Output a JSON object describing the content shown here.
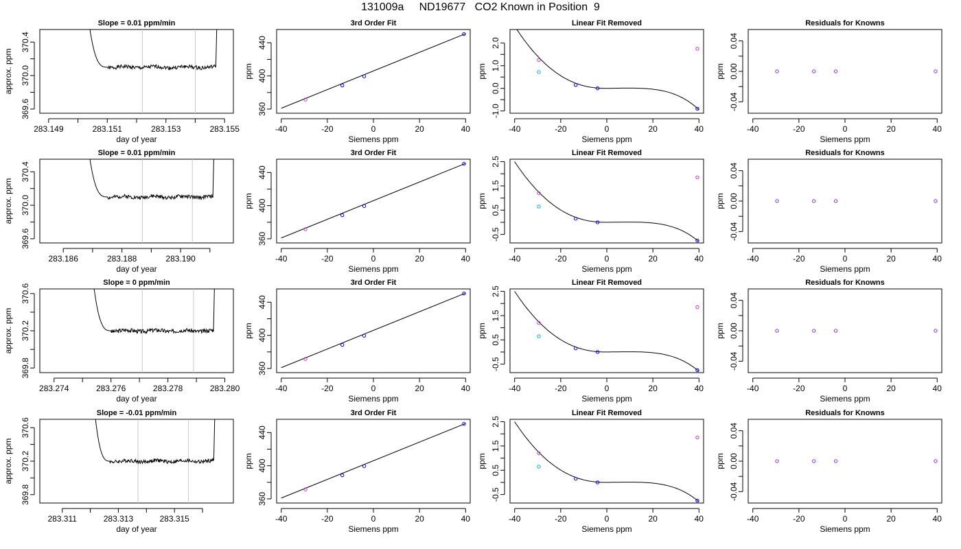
{
  "figure_title": "131009a     ND19677   CO2 Known in Position  9",
  "colors": {
    "trace": "#000000",
    "marker_window": "#c8c8c8",
    "known_points": "#0000ff",
    "fit_points_purple": "#8a2be2",
    "linear_removed_magenta": "#cc33cc",
    "linear_removed_cyan": "#00b0d0"
  },
  "chart_data": [
    {
      "type": "line",
      "row": 0,
      "col": 0,
      "title": "Slope =  0.01  ppm/min",
      "xlabel": "day of year",
      "ylabel": "approx. ppm",
      "xlim": [
        283.1487,
        283.1553
      ],
      "ylim": [
        369.55,
        370.55
      ],
      "xticks": [
        283.149,
        283.15,
        283.151,
        283.152,
        283.153,
        283.154,
        283.155
      ],
      "xtick_labels": [
        "283.149",
        "",
        "283.151",
        "",
        "283.153",
        "",
        "283.155"
      ],
      "yticks": [
        369.6,
        369.8,
        370.0,
        370.2,
        370.4
      ],
      "ytick_labels": [
        "369.6",
        "",
        "370.0",
        "",
        "370.4"
      ],
      "windows": [
        283.1522,
        283.154
      ],
      "trace": {
        "start": 283.1503,
        "rise_end": 283.151,
        "plateau": 370.1,
        "end": 283.1547,
        "seed": 1
      }
    },
    {
      "type": "scatter",
      "row": 0,
      "col": 1,
      "title": "3rd Order Fit",
      "xlabel": "Siemens ppm",
      "ylabel": "ppm",
      "xlim": [
        -42,
        42
      ],
      "ylim": [
        355,
        456
      ],
      "xticks": [
        -40,
        -20,
        0,
        20,
        40
      ],
      "xtick_labels": [
        "-40",
        "-20",
        "0",
        "20",
        "40"
      ],
      "yticks": [
        360,
        380,
        400,
        420,
        440
      ],
      "ytick_labels": [
        "360",
        "",
        "400",
        "",
        "440"
      ],
      "fit_line": {
        "x1": -40,
        "y1": 361,
        "x2": 40,
        "y2": 451
      },
      "points": [
        {
          "x": -29.5,
          "y": 371.5,
          "color": "#cc33cc"
        },
        {
          "x": -13.5,
          "y": 388.5,
          "color": "#0000ff"
        },
        {
          "x": -4,
          "y": 399.5,
          "color": "#0000ff"
        },
        {
          "x": 39.3,
          "y": 450.5,
          "color": "#0000ff"
        }
      ]
    },
    {
      "type": "scatter",
      "row": 0,
      "col": 2,
      "title": "Linear Fit Removed",
      "xlabel": "Siemens ppm",
      "ylabel": "ppm",
      "xlim": [
        -42,
        42
      ],
      "ylim": [
        -1.1,
        2.6
      ],
      "xticks": [
        -40,
        -20,
        0,
        20,
        40
      ],
      "xtick_labels": [
        "-40",
        "-20",
        "0",
        "20",
        "40"
      ],
      "yticks": [
        -1.0,
        -0.5,
        0.0,
        0.5,
        1.0,
        1.5,
        2.0
      ],
      "ytick_labels": [
        "-1.0",
        "",
        "0.0",
        "",
        "1.0",
        "",
        "2.0"
      ],
      "curve": {
        "anchor_y": 0.0,
        "left_y": 2.75,
        "right_y": -0.95
      },
      "points": [
        {
          "x": -29.5,
          "y": 1.25,
          "color": "#cc33cc"
        },
        {
          "x": -29.5,
          "y": 0.72,
          "color": "#00b0d0"
        },
        {
          "x": -13.5,
          "y": 0.15,
          "color": "#0000ff"
        },
        {
          "x": -4,
          "y": 0.0,
          "color": "#0000ff"
        },
        {
          "x": 39.3,
          "y": 1.75,
          "color": "#cc33cc"
        },
        {
          "x": 39.3,
          "y": -0.9,
          "color": "#0000ff"
        }
      ]
    },
    {
      "type": "scatter",
      "row": 0,
      "col": 3,
      "title": "Residuals for Knowns",
      "xlabel": "Siemens ppm",
      "ylabel": "ppm",
      "xlim": [
        -42,
        42
      ],
      "ylim": [
        -0.055,
        0.055
      ],
      "xticks": [
        -40,
        -20,
        0,
        20,
        40
      ],
      "xtick_labels": [
        "-40",
        "-20",
        "0",
        "20",
        "40"
      ],
      "yticks": [
        -0.04,
        -0.02,
        0.0,
        0.02,
        0.04
      ],
      "ytick_labels": [
        "-0.04",
        "",
        "0.00",
        "",
        "0.04"
      ],
      "points": [
        {
          "x": -29.5,
          "y": 0,
          "color": "#8a2be2"
        },
        {
          "x": -13.5,
          "y": 0,
          "color": "#8a2be2"
        },
        {
          "x": -4,
          "y": 0,
          "color": "#8a2be2"
        },
        {
          "x": 39.3,
          "y": 0,
          "color": "#8a2be2"
        }
      ]
    },
    {
      "type": "line",
      "row": 1,
      "col": 0,
      "title": "Slope =  0.01  ppm/min",
      "xlabel": "day of year",
      "ylabel": "approx. ppm",
      "xlim": [
        283.1852,
        283.1918
      ],
      "ylim": [
        369.55,
        370.55
      ],
      "xticks": [
        283.186,
        283.187,
        283.188,
        283.189,
        283.19,
        283.191
      ],
      "xtick_labels": [
        "283.186",
        "",
        "283.188",
        "",
        "283.190",
        ""
      ],
      "yticks": [
        369.6,
        369.8,
        370.0,
        370.2,
        370.4
      ],
      "ytick_labels": [
        "369.6",
        "",
        "370.0",
        "",
        "370.4"
      ],
      "windows": [
        283.1887,
        283.1904
      ],
      "trace": {
        "start": 283.1868,
        "rise_end": 283.1875,
        "plateau": 370.1,
        "end": 283.1911,
        "seed": 2
      }
    },
    {
      "type": "scatter",
      "row": 1,
      "col": 1,
      "title": "3rd Order Fit",
      "xlabel": "Siemens ppm",
      "ylabel": "ppm",
      "xlim": [
        -42,
        42
      ],
      "ylim": [
        355,
        456
      ],
      "xticks": [
        -40,
        -20,
        0,
        20,
        40
      ],
      "xtick_labels": [
        "-40",
        "-20",
        "0",
        "20",
        "40"
      ],
      "yticks": [
        360,
        380,
        400,
        420,
        440
      ],
      "ytick_labels": [
        "360",
        "",
        "400",
        "",
        "440"
      ],
      "fit_line": {
        "x1": -40,
        "y1": 361,
        "x2": 40,
        "y2": 451
      },
      "points": [
        {
          "x": -29.5,
          "y": 371.5,
          "color": "#cc33cc"
        },
        {
          "x": -13.5,
          "y": 388.5,
          "color": "#0000ff"
        },
        {
          "x": -4,
          "y": 399.5,
          "color": "#0000ff"
        },
        {
          "x": 39.3,
          "y": 450.5,
          "color": "#0000ff"
        }
      ]
    },
    {
      "type": "scatter",
      "row": 1,
      "col": 2,
      "title": "Linear Fit Removed",
      "xlabel": "Siemens ppm",
      "ylabel": "ppm",
      "xlim": [
        -42,
        42
      ],
      "ylim": [
        -0.85,
        2.6
      ],
      "xticks": [
        -40,
        -20,
        0,
        20,
        40
      ],
      "xtick_labels": [
        "-40",
        "-20",
        "0",
        "20",
        "40"
      ],
      "yticks": [
        -0.5,
        0.0,
        0.5,
        1.0,
        1.5,
        2.0,
        2.5
      ],
      "ytick_labels": [
        "-0.5",
        "",
        "0.5",
        "",
        "1.5",
        "",
        "2.5"
      ],
      "curve": {
        "anchor_y": 0.0,
        "left_y": 2.5,
        "right_y": -0.8
      },
      "points": [
        {
          "x": -29.5,
          "y": 1.2,
          "color": "#cc33cc"
        },
        {
          "x": -29.5,
          "y": 0.65,
          "color": "#00b0d0"
        },
        {
          "x": -13.5,
          "y": 0.15,
          "color": "#0000ff"
        },
        {
          "x": -4,
          "y": 0.0,
          "color": "#0000ff"
        },
        {
          "x": 39.3,
          "y": 1.85,
          "color": "#cc33cc"
        },
        {
          "x": 39.3,
          "y": -0.75,
          "color": "#0000ff"
        }
      ]
    },
    {
      "type": "scatter",
      "row": 1,
      "col": 3,
      "title": "Residuals for Knowns",
      "xlabel": "Siemens ppm",
      "ylabel": "ppm",
      "xlim": [
        -42,
        42
      ],
      "ylim": [
        -0.055,
        0.055
      ],
      "xticks": [
        -40,
        -20,
        0,
        20,
        40
      ],
      "xtick_labels": [
        "-40",
        "-20",
        "0",
        "20",
        "40"
      ],
      "yticks": [
        -0.04,
        -0.02,
        0.0,
        0.02,
        0.04
      ],
      "ytick_labels": [
        "-0.04",
        "",
        "0.00",
        "",
        "0.04"
      ],
      "points": [
        {
          "x": -29.5,
          "y": 0,
          "color": "#8a2be2"
        },
        {
          "x": -13.5,
          "y": 0,
          "color": "#8a2be2"
        },
        {
          "x": -4,
          "y": 0,
          "color": "#8a2be2"
        },
        {
          "x": 39.3,
          "y": 0,
          "color": "#8a2be2"
        }
      ]
    },
    {
      "type": "line",
      "row": 2,
      "col": 0,
      "title": "Slope =  0  ppm/min",
      "xlabel": "day of year",
      "ylabel": "approx. ppm",
      "xlim": [
        283.2735,
        283.2803
      ],
      "ylim": [
        369.75,
        370.65
      ],
      "xticks": [
        283.274,
        283.275,
        283.276,
        283.277,
        283.278,
        283.279,
        283.28
      ],
      "xtick_labels": [
        "283.274",
        "",
        "283.276",
        "",
        "283.278",
        "",
        "283.280"
      ],
      "yticks": [
        369.8,
        370.0,
        370.2,
        370.4,
        370.6
      ],
      "ytick_labels": [
        "369.8",
        "",
        "370.2",
        "",
        "370.6"
      ],
      "windows": [
        283.2771,
        283.2789
      ],
      "trace": {
        "start": 283.2753,
        "rise_end": 283.276,
        "plateau": 370.2,
        "end": 283.2796,
        "seed": 3
      }
    },
    {
      "type": "scatter",
      "row": 2,
      "col": 1,
      "title": "3rd Order Fit",
      "xlabel": "Siemens ppm",
      "ylabel": "ppm",
      "xlim": [
        -42,
        42
      ],
      "ylim": [
        355,
        456
      ],
      "xticks": [
        -40,
        -20,
        0,
        20,
        40
      ],
      "xtick_labels": [
        "-40",
        "-20",
        "0",
        "20",
        "40"
      ],
      "yticks": [
        360,
        380,
        400,
        420,
        440
      ],
      "ytick_labels": [
        "360",
        "",
        "400",
        "",
        "440"
      ],
      "fit_line": {
        "x1": -40,
        "y1": 361,
        "x2": 40,
        "y2": 451
      },
      "points": [
        {
          "x": -29.5,
          "y": 371.5,
          "color": "#cc33cc"
        },
        {
          "x": -13.5,
          "y": 388.5,
          "color": "#0000ff"
        },
        {
          "x": -4,
          "y": 399.5,
          "color": "#0000ff"
        },
        {
          "x": 39.3,
          "y": 450.5,
          "color": "#0000ff"
        }
      ]
    },
    {
      "type": "scatter",
      "row": 2,
      "col": 2,
      "title": "Linear Fit Removed",
      "xlabel": "Siemens ppm",
      "ylabel": "ppm",
      "xlim": [
        -42,
        42
      ],
      "ylim": [
        -0.85,
        2.6
      ],
      "xticks": [
        -40,
        -20,
        0,
        20,
        40
      ],
      "xtick_labels": [
        "-40",
        "-20",
        "0",
        "20",
        "40"
      ],
      "yticks": [
        -0.5,
        0.0,
        0.5,
        1.0,
        1.5,
        2.0,
        2.5
      ],
      "ytick_labels": [
        "-0.5",
        "",
        "0.5",
        "",
        "1.5",
        "",
        "2.5"
      ],
      "curve": {
        "anchor_y": 0.0,
        "left_y": 2.5,
        "right_y": -0.8
      },
      "points": [
        {
          "x": -29.5,
          "y": 1.2,
          "color": "#cc33cc"
        },
        {
          "x": -29.5,
          "y": 0.65,
          "color": "#00b0d0"
        },
        {
          "x": -13.5,
          "y": 0.15,
          "color": "#0000ff"
        },
        {
          "x": -4,
          "y": 0.0,
          "color": "#0000ff"
        },
        {
          "x": 39.3,
          "y": 1.85,
          "color": "#cc33cc"
        },
        {
          "x": 39.3,
          "y": -0.75,
          "color": "#0000ff"
        }
      ]
    },
    {
      "type": "scatter",
      "row": 2,
      "col": 3,
      "title": "Residuals for Knowns",
      "xlabel": "Siemens ppm",
      "ylabel": "ppm",
      "xlim": [
        -42,
        42
      ],
      "ylim": [
        -0.055,
        0.055
      ],
      "xticks": [
        -40,
        -20,
        0,
        20,
        40
      ],
      "xtick_labels": [
        "-40",
        "-20",
        "0",
        "20",
        "40"
      ],
      "yticks": [
        -0.04,
        -0.02,
        0.0,
        0.02,
        0.04
      ],
      "ytick_labels": [
        "-0.04",
        "",
        "0.00",
        "",
        "0.04"
      ],
      "points": [
        {
          "x": -29.5,
          "y": 0,
          "color": "#8a2be2"
        },
        {
          "x": -13.5,
          "y": 0,
          "color": "#8a2be2"
        },
        {
          "x": -4,
          "y": 0,
          "color": "#8a2be2"
        },
        {
          "x": 39.3,
          "y": 0,
          "color": "#8a2be2"
        }
      ]
    },
    {
      "type": "line",
      "row": 3,
      "col": 0,
      "title": "Slope =  -0.01  ppm/min",
      "xlabel": "day of year",
      "ylabel": "approx. ppm",
      "xlim": [
        283.3102,
        283.3171
      ],
      "ylim": [
        369.7,
        370.7
      ],
      "xticks": [
        283.311,
        283.312,
        283.313,
        283.314,
        283.315,
        283.316
      ],
      "xtick_labels": [
        "283.311",
        "",
        "283.313",
        "",
        "283.315",
        ""
      ],
      "yticks": [
        369.8,
        370.0,
        370.2,
        370.4,
        370.6
      ],
      "ytick_labels": [
        "369.8",
        "",
        "370.2",
        "",
        "370.6"
      ],
      "windows": [
        283.3137,
        283.3155
      ],
      "trace": {
        "start": 283.3121,
        "rise_end": 283.3127,
        "plateau": 370.2,
        "end": 283.3164,
        "seed": 4
      }
    },
    {
      "type": "scatter",
      "row": 3,
      "col": 1,
      "title": "3rd Order Fit",
      "xlabel": "Siemens ppm",
      "ylabel": "ppm",
      "xlim": [
        -42,
        42
      ],
      "ylim": [
        355,
        456
      ],
      "xticks": [
        -40,
        -20,
        0,
        20,
        40
      ],
      "xtick_labels": [
        "-40",
        "-20",
        "0",
        "20",
        "40"
      ],
      "yticks": [
        360,
        380,
        400,
        420,
        440
      ],
      "ytick_labels": [
        "360",
        "",
        "400",
        "",
        "440"
      ],
      "fit_line": {
        "x1": -40,
        "y1": 361,
        "x2": 40,
        "y2": 451
      },
      "points": [
        {
          "x": -29.5,
          "y": 371.5,
          "color": "#cc33cc"
        },
        {
          "x": -13.5,
          "y": 388.5,
          "color": "#0000ff"
        },
        {
          "x": -4,
          "y": 399.5,
          "color": "#0000ff"
        },
        {
          "x": 39.3,
          "y": 450.5,
          "color": "#0000ff"
        }
      ]
    },
    {
      "type": "scatter",
      "row": 3,
      "col": 2,
      "title": "Linear Fit Removed",
      "xlabel": "Siemens ppm",
      "ylabel": "ppm",
      "xlim": [
        -42,
        42
      ],
      "ylim": [
        -0.85,
        2.6
      ],
      "xticks": [
        -40,
        -20,
        0,
        20,
        40
      ],
      "xtick_labels": [
        "-40",
        "-20",
        "0",
        "20",
        "40"
      ],
      "yticks": [
        -0.5,
        0.0,
        0.5,
        1.0,
        1.5,
        2.0,
        2.5
      ],
      "ytick_labels": [
        "-0.5",
        "",
        "0.5",
        "",
        "1.5",
        "",
        "2.5"
      ],
      "curve": {
        "anchor_y": 0.0,
        "left_y": 2.5,
        "right_y": -0.8
      },
      "points": [
        {
          "x": -29.5,
          "y": 1.2,
          "color": "#cc33cc"
        },
        {
          "x": -29.5,
          "y": 0.65,
          "color": "#00b0d0"
        },
        {
          "x": -13.5,
          "y": 0.15,
          "color": "#0000ff"
        },
        {
          "x": -4,
          "y": 0.0,
          "color": "#0000ff"
        },
        {
          "x": 39.3,
          "y": 1.85,
          "color": "#cc33cc"
        },
        {
          "x": 39.3,
          "y": -0.75,
          "color": "#0000ff"
        }
      ]
    },
    {
      "type": "scatter",
      "row": 3,
      "col": 3,
      "title": "Residuals for Knowns",
      "xlabel": "Siemens ppm",
      "ylabel": "ppm",
      "xlim": [
        -42,
        42
      ],
      "ylim": [
        -0.055,
        0.055
      ],
      "xticks": [
        -40,
        -20,
        0,
        20,
        40
      ],
      "xtick_labels": [
        "-40",
        "-20",
        "0",
        "20",
        "40"
      ],
      "yticks": [
        -0.04,
        -0.02,
        0.0,
        0.02,
        0.04
      ],
      "ytick_labels": [
        "-0.04",
        "",
        "0.00",
        "",
        "0.04"
      ],
      "points": [
        {
          "x": -29.5,
          "y": 0,
          "color": "#8a2be2"
        },
        {
          "x": -13.5,
          "y": 0,
          "color": "#8a2be2"
        },
        {
          "x": -4,
          "y": 0,
          "color": "#8a2be2"
        },
        {
          "x": 39.3,
          "y": 0,
          "color": "#8a2be2"
        }
      ]
    }
  ]
}
